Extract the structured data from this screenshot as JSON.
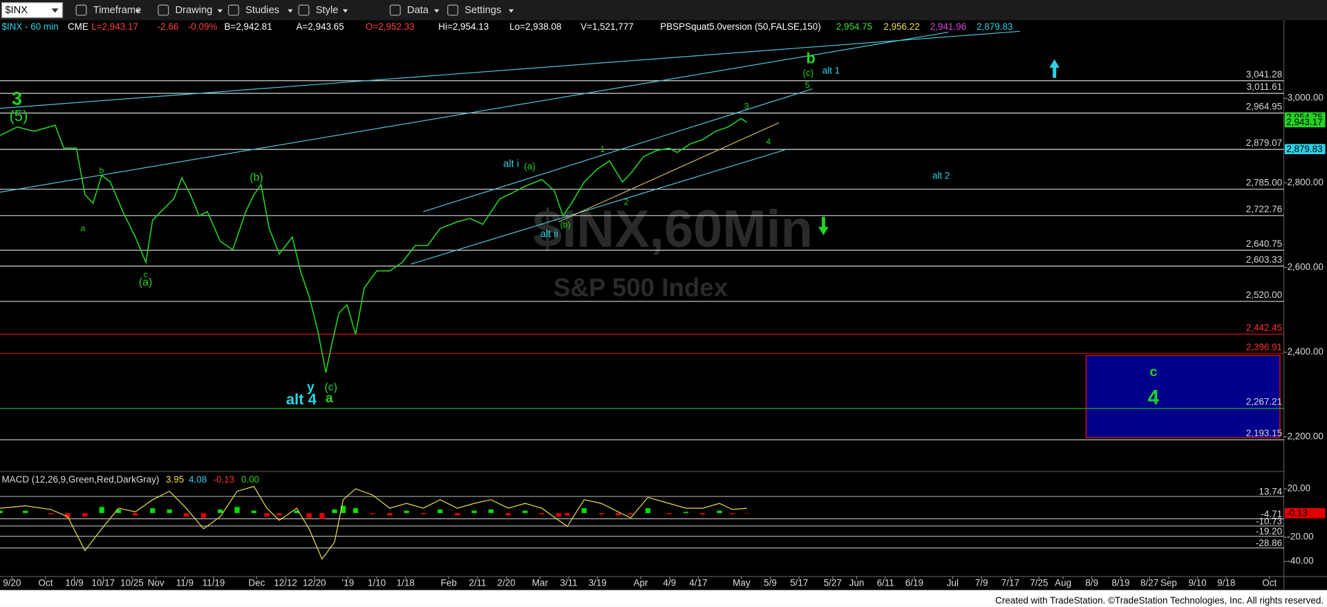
{
  "toolbar": {
    "symbol": "$INX",
    "menus": [
      "Timeframe",
      "Drawing",
      "Studies",
      "Style",
      "Data",
      "Settings"
    ]
  },
  "header": {
    "items": [
      {
        "text": "$INX - 60 min",
        "color": "#29d4e8"
      },
      {
        "text": "CME",
        "color": "#ffffff"
      },
      {
        "text": "L=2,943.17",
        "color": "#ff4040"
      },
      {
        "text": "-2.66",
        "color": "#ff4040"
      },
      {
        "text": "-0.09%",
        "color": "#ff4040"
      },
      {
        "text": "B=2,942.81",
        "color": "#ffffff"
      },
      {
        "text": "A=2,943.65",
        "color": "#ffffff"
      },
      {
        "text": "O=2,952.33",
        "color": "#ff4040"
      },
      {
        "text": "Hi=2,954.13",
        "color": "#ffffff"
      },
      {
        "text": "Lo=2,938.08",
        "color": "#ffffff"
      },
      {
        "text": "V=1,521,777",
        "color": "#ffffff"
      },
      {
        "text": "PBSPSquat5.0version (50,FALSE,150)",
        "color": "#ffffff"
      },
      {
        "text": "2,954.75",
        "color": "#3ee03e"
      },
      {
        "text": "2,956.22",
        "color": "#f0e040"
      },
      {
        "text": "2,941.96",
        "color": "#e040e0"
      },
      {
        "text": "2,879.83",
        "color": "#29d4e8"
      }
    ]
  },
  "chart_data": [
    {
      "type": "line",
      "title": "$INX,60Min",
      "subtitle": "S&P 500 Index",
      "color": "#22d422",
      "x": [
        -2.5,
        1.1,
        4.6,
        9.0,
        10.8,
        13.4,
        15.2,
        16.9,
        18.7,
        20.5,
        23.1,
        25.7,
        27.9,
        29.3,
        31.9,
        33.7,
        35.4,
        37.2,
        39.0,
        40.7,
        43.4,
        46.0,
        48.7,
        50.4,
        51.9,
        53.6,
        55.7,
        58.4,
        60.1,
        61.9,
        63.7,
        65.4,
        66.7,
        68.1,
        69.8,
        71.6,
        73.4,
        76.0,
        78.7,
        81.3,
        84.0,
        86.6,
        89.2,
        92.8,
        95.4,
        98.1,
        101.6,
        104.2,
        106.9,
        110.4,
        113.0,
        114.8,
        116.6,
        119.2,
        121.9,
        124.5,
        127.2,
        128.9,
        131.6,
        134.2,
        136.9,
        138.6,
        141.3,
        143.9,
        146.6,
        149.2,
        151.9,
        153.1
      ],
      "values": [
        2912,
        2932,
        2922,
        2936,
        2882,
        2882,
        2772,
        2752,
        2818,
        2802,
        2732,
        2672,
        2612,
        2712,
        2742,
        2762,
        2812,
        2772,
        2722,
        2732,
        2662,
        2642,
        2732,
        2772,
        2796,
        2692,
        2632,
        2672,
        2592,
        2532,
        2452,
        2352,
        2422,
        2492,
        2512,
        2442,
        2552,
        2592,
        2592,
        2612,
        2652,
        2652,
        2692,
        2708,
        2716,
        2702,
        2762,
        2776,
        2792,
        2808,
        2782,
        2722,
        2752,
        2802,
        2832,
        2852,
        2802,
        2822,
        2862,
        2876,
        2882,
        2872,
        2892,
        2902,
        2922,
        2932,
        2952,
        2943.17
      ],
      "xlim": [
        -2.5,
        265
      ],
      "xticks": [
        {
          "value": 0,
          "label": "9/20"
        },
        {
          "value": 7,
          "label": "Oct"
        },
        {
          "value": 13,
          "label": "10/9"
        },
        {
          "value": 19,
          "label": "10/17"
        },
        {
          "value": 25,
          "label": "10/25"
        },
        {
          "value": 30,
          "label": "Nov"
        },
        {
          "value": 36,
          "label": "11/9"
        },
        {
          "value": 42,
          "label": "11/19"
        },
        {
          "value": 51,
          "label": "Dec"
        },
        {
          "value": 57,
          "label": "12/12"
        },
        {
          "value": 63,
          "label": "12/20"
        },
        {
          "value": 70,
          "label": "'19"
        },
        {
          "value": 76,
          "label": "1/10"
        },
        {
          "value": 82,
          "label": "1/18"
        },
        {
          "value": 91,
          "label": "Feb"
        },
        {
          "value": 97,
          "label": "2/11"
        },
        {
          "value": 103,
          "label": "2/20"
        },
        {
          "value": 110,
          "label": "Mar"
        },
        {
          "value": 116,
          "label": "3/11"
        },
        {
          "value": 122,
          "label": "3/19"
        },
        {
          "value": 131,
          "label": "Apr"
        },
        {
          "value": 137,
          "label": "4/9"
        },
        {
          "value": 143,
          "label": "4/17"
        },
        {
          "value": 152,
          "label": "May"
        },
        {
          "value": 158,
          "label": "5/9"
        },
        {
          "value": 164,
          "label": "5/17"
        },
        {
          "value": 171,
          "label": "5/27"
        },
        {
          "value": 176,
          "label": "Jun"
        },
        {
          "value": 182,
          "label": "6/11"
        },
        {
          "value": 188,
          "label": "6/19"
        },
        {
          "value": 196,
          "label": "Jul"
        },
        {
          "value": 202,
          "label": "7/9"
        },
        {
          "value": 208,
          "label": "7/17"
        },
        {
          "value": 214,
          "label": "7/25"
        },
        {
          "value": 219,
          "label": "Aug"
        },
        {
          "value": 225,
          "label": "8/9"
        },
        {
          "value": 231,
          "label": "8/19"
        },
        {
          "value": 237,
          "label": "8/27"
        },
        {
          "value": 241,
          "label": "Sep"
        },
        {
          "value": 247,
          "label": "9/10"
        },
        {
          "value": 253,
          "label": "9/18"
        },
        {
          "value": 262,
          "label": "Oct"
        }
      ],
      "ylim": [
        2122,
        3184
      ],
      "yticks": [
        {
          "value": 3000,
          "label": "3,000.00"
        },
        {
          "value": 2800,
          "label": "2,800.00"
        },
        {
          "value": 2600,
          "label": "2,600.00"
        },
        {
          "value": 2400,
          "label": "2,400.00"
        },
        {
          "value": 2200,
          "label": "2,200.00"
        }
      ],
      "levels": [
        {
          "value": 3041.28,
          "label": "3,041.28",
          "color": "#d8d8d8",
          "text_color": "#d8d8d8"
        },
        {
          "value": 3011.61,
          "label": "3,011.61",
          "color": "#d8d8d8",
          "text_color": "#d8d8d8"
        },
        {
          "value": 2964.95,
          "label": "2,964.95",
          "color": "#d8d8d8",
          "text_color": "#d8d8d8"
        },
        {
          "value": 2879.07,
          "label": "2,879.07",
          "color": "#d8d8d8",
          "text_color": "#d8d8d8"
        },
        {
          "value": 2785,
          "label": "2,785.00",
          "color": "#d8d8d8",
          "text_color": "#d8d8d8"
        },
        {
          "value": 2722.76,
          "label": "2,722.76",
          "color": "#d8d8d8",
          "text_color": "#d8d8d8"
        },
        {
          "value": 2640.75,
          "label": "2,640.75",
          "color": "#d8d8d8",
          "text_color": "#d8d8d8"
        },
        {
          "value": 2603.33,
          "label": "2,603.33",
          "color": "#d8d8d8",
          "text_color": "#d8d8d8"
        },
        {
          "value": 2520,
          "label": "2,520.00",
          "color": "#d8d8d8",
          "text_color": "#d8d8d8"
        },
        {
          "value": 2442.45,
          "label": "2,442.45",
          "color": "#cc1010",
          "text_color": "#ff3030"
        },
        {
          "value": 2396.91,
          "label": "2,396.91",
          "color": "#cc1010",
          "text_color": "#ff3030"
        },
        {
          "value": 2267.21,
          "label": "2,267.21",
          "color": "#1fae1f",
          "text_color": "#d8d8d8"
        },
        {
          "value": 2193.15,
          "label": "2,193.15",
          "color": "#d8d8d8",
          "text_color": "#d8d8d8"
        }
      ],
      "trendlines": [
        {
          "x": [
            -2.5,
            210.0
          ],
          "values": [
            2976,
            3158
          ],
          "color": "#4fc3d9"
        },
        {
          "x": [
            -2.5,
            195.1
          ],
          "values": [
            2778,
            3156
          ],
          "color": "#4fc3d9"
        },
        {
          "x": [
            83.1,
            161.6
          ],
          "values": [
            2608,
            2880
          ],
          "color": "#4fc3d9"
        },
        {
          "x": [
            85.7,
            166.8
          ],
          "values": [
            2732,
            3022
          ],
          "color": "#4fc3d9"
        },
        {
          "x": [
            113.9,
            159.8
          ],
          "values": [
            2708,
            2942
          ],
          "color": "#c8b560"
        }
      ],
      "zone": {
        "x": [
          223.8,
          264.2
        ],
        "values": [
          2198,
          2392
        ],
        "color": "#00008a",
        "border": "#cc1010"
      },
      "price_badges": [
        {
          "value": 2954.75,
          "label": "2,954.75",
          "color": "#22d422"
        },
        {
          "value": 2943.17,
          "label": "2,943.17",
          "color": "#22d422"
        },
        {
          "value": 2879.83,
          "label": "2,879.83",
          "color": "#29d4e8"
        }
      ],
      "annotations": [
        {
          "text": "3",
          "color": "#22d422"
        },
        {
          "text": "(5)",
          "color": "#22d422"
        },
        {
          "text": "a",
          "color": "#22d422"
        },
        {
          "text": "b",
          "color": "#22d422"
        },
        {
          "text": "c",
          "color": "#22d422"
        },
        {
          "text": "(a)",
          "color": "#22d422"
        },
        {
          "text": "(b)",
          "color": "#22d422"
        },
        {
          "text": "y",
          "color": "#29d4e8"
        },
        {
          "text": "alt 4",
          "color": "#29d4e8"
        },
        {
          "text": "(c)",
          "color": "#22d422"
        },
        {
          "text": "a",
          "color": "#22d422"
        },
        {
          "text": "alt i",
          "color": "#29d4e8"
        },
        {
          "text": "(a)",
          "color": "#22d422"
        },
        {
          "text": "alt ii",
          "color": "#29d4e8"
        },
        {
          "text": "(b)",
          "color": "#22d422"
        },
        {
          "text": "1",
          "color": "#22d422"
        },
        {
          "text": "2",
          "color": "#22d422"
        },
        {
          "text": "3",
          "color": "#22d422"
        },
        {
          "text": "4",
          "color": "#22d422"
        },
        {
          "text": "5",
          "color": "#22d422"
        },
        {
          "text": "(c)",
          "color": "#22d422"
        },
        {
          "text": "b",
          "color": "#22d422"
        },
        {
          "text": "alt 1",
          "color": "#29d4e8"
        },
        {
          "text": "alt 2",
          "color": "#29d4e8"
        },
        {
          "text": "c",
          "color": "#22d422"
        },
        {
          "text": "4",
          "color": "#22d422"
        }
      ]
    },
    {
      "type": "line",
      "title": "MACD (12,26,9,Green,Red,DarkGray)",
      "readouts": [
        {
          "value": 3.95,
          "color": "#f0e040"
        },
        {
          "value": 4.08,
          "color": "#29d4e8"
        },
        {
          "value": -0.13,
          "color": "#ff3030"
        },
        {
          "value": 0,
          "label": "0.00",
          "color": "#22d422"
        }
      ],
      "x": [
        -2.5,
        2.8,
        8.1,
        11.6,
        15.2,
        18.7,
        22.2,
        25.7,
        29.3,
        32.8,
        36.3,
        39.9,
        43.4,
        46.9,
        50.4,
        53.1,
        55.7,
        59.3,
        61.9,
        64.6,
        67.2,
        69.0,
        71.6,
        75.1,
        78.7,
        82.2,
        85.7,
        89.2,
        92.8,
        96.3,
        99.8,
        103.4,
        106.9,
        110.4,
        113.9,
        115.7,
        119.2,
        122.8,
        126.3,
        128.9,
        132.5,
        136.9,
        140.4,
        143.9,
        147.4,
        150.1,
        153.1
      ],
      "series": [
        {
          "color": "#e8e04a",
          "values": [
            4,
            6,
            3,
            -3,
            -31,
            -13,
            4,
            1,
            11,
            18,
            4,
            -13,
            -3,
            18,
            22,
            4,
            -6,
            4,
            -13,
            -38,
            -24,
            11,
            20,
            15,
            4,
            8,
            4,
            11,
            4,
            8,
            11,
            4,
            8,
            4,
            -6,
            -11,
            11,
            8,
            1,
            -4,
            13,
            8,
            4,
            4,
            8,
            3,
            4
          ]
        }
      ],
      "histogram": {
        "values": [
          2,
          2,
          -1,
          -4,
          -3,
          5,
          3,
          -2,
          4,
          3,
          -3,
          -4,
          3,
          5,
          2,
          -3,
          -2,
          2,
          -4,
          -5,
          3,
          6,
          4,
          -1,
          -2,
          2,
          -1,
          3,
          -2,
          2,
          3,
          -2,
          2,
          -1,
          -3,
          -2,
          4,
          -1,
          -2,
          -1,
          4,
          -1,
          1,
          -1,
          2,
          -1,
          -0.13
        ],
        "up_color": "#00e000",
        "down_color": "#e00000"
      },
      "ylim": [
        -51.7,
        32.2
      ],
      "yticks": [
        {
          "value": 20,
          "label": "20.00"
        },
        {
          "value": -20,
          "label": "-20.00"
        },
        {
          "value": -40,
          "label": "-40.00"
        }
      ],
      "levels": [
        {
          "value": 13.74,
          "color": "#d8d8d8"
        },
        {
          "value": -4.71,
          "color": "#d8d8d8"
        },
        {
          "value": -10.73,
          "color": "#d8d8d8"
        },
        {
          "value": -19.2,
          "label": "-19.20",
          "color": "#d8d8d8"
        },
        {
          "value": -28.86,
          "color": "#d8d8d8"
        }
      ],
      "badge": {
        "value": -0.13,
        "color": "#e00000"
      }
    }
  ],
  "footer": "Created with TradeStation. ©TradeStation Technologies, Inc. All rights reserved."
}
